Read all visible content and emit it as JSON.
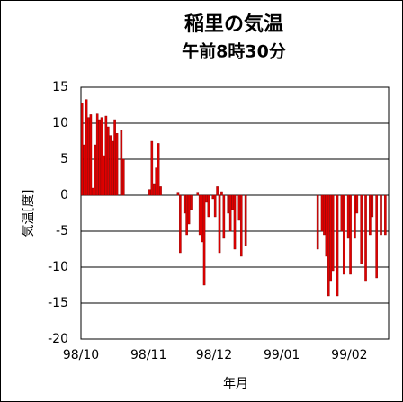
{
  "chart_data": {
    "type": "bar",
    "title": "稲里の気温",
    "subtitle": "午前8時30分",
    "x_label": "年月",
    "y_label": "気温[度]",
    "color": "#e00000",
    "grid": true,
    "ylim": [
      -20,
      15
    ],
    "yticks": [
      -20,
      -15,
      -10,
      -5,
      0,
      5,
      10,
      15
    ],
    "categories": [
      "98/10",
      null,
      null,
      null,
      null,
      null,
      null,
      null,
      null,
      null,
      null,
      null,
      null,
      null,
      null,
      null,
      null,
      null,
      null,
      null,
      null,
      null,
      null,
      null,
      null,
      null,
      null,
      null,
      null,
      null,
      null,
      "98/11",
      null,
      null,
      null,
      null,
      null,
      null,
      null,
      null,
      null,
      null,
      null,
      null,
      null,
      null,
      null,
      null,
      null,
      null,
      null,
      null,
      null,
      null,
      null,
      null,
      null,
      null,
      null,
      null,
      null,
      "98/12",
      null,
      null,
      null,
      null,
      null,
      null,
      null,
      null,
      null,
      null,
      null,
      null,
      null,
      null,
      null,
      null,
      null,
      null,
      null,
      null,
      null,
      null,
      null,
      null,
      null,
      null,
      null,
      null,
      null,
      null,
      "99/01",
      null,
      null,
      null,
      null,
      null,
      null,
      null,
      null,
      null,
      null,
      null,
      null,
      null,
      null,
      null,
      null,
      null,
      null,
      null,
      null,
      null,
      null,
      null,
      null,
      null,
      null,
      null,
      null,
      null,
      null,
      "99/02",
      null,
      null,
      null,
      null,
      null,
      null,
      null,
      null,
      null,
      null,
      null,
      null,
      null,
      null,
      null,
      null,
      null
    ],
    "values": [
      12.8,
      7,
      13.3,
      10.8,
      11.2,
      1,
      7,
      11.3,
      10.5,
      10.8,
      5.5,
      11,
      9.5,
      8.3,
      7.5,
      10.5,
      8.6,
      null,
      9,
      5,
      null,
      null,
      null,
      null,
      null,
      null,
      null,
      null,
      null,
      null,
      null,
      0.8,
      7.5,
      1.5,
      3.8,
      7.2,
      1.2,
      null,
      null,
      null,
      null,
      null,
      null,
      null,
      0.3,
      -8,
      null,
      -2.5,
      -5.5,
      -4,
      -2,
      null,
      null,
      0.3,
      -5.5,
      -6.5,
      -12.5,
      -1,
      -3,
      null,
      -0.5,
      -3,
      1.2,
      -8,
      0.5,
      -6,
      null,
      -2.5,
      -5,
      -2,
      -7.5,
      null,
      -3.5,
      -8.5,
      0,
      -7,
      null,
      null,
      null,
      null,
      null,
      null,
      null,
      null,
      null,
      null,
      null,
      null,
      null,
      null,
      null,
      null,
      null,
      null,
      null,
      null,
      null,
      null,
      null,
      null,
      null,
      null,
      null,
      null,
      null,
      null,
      null,
      null,
      -7.5,
      null,
      -5,
      -5.5,
      -8.5,
      -14,
      -12,
      -10.5,
      null,
      -14,
      null,
      -5,
      -11,
      null,
      -6,
      -11,
      null,
      -6,
      -2.5,
      null,
      -9.5,
      null,
      -12,
      null,
      -5.5,
      -3,
      null,
      -11.5,
      null,
      -5.5,
      null,
      -5.5,
      null
    ]
  }
}
